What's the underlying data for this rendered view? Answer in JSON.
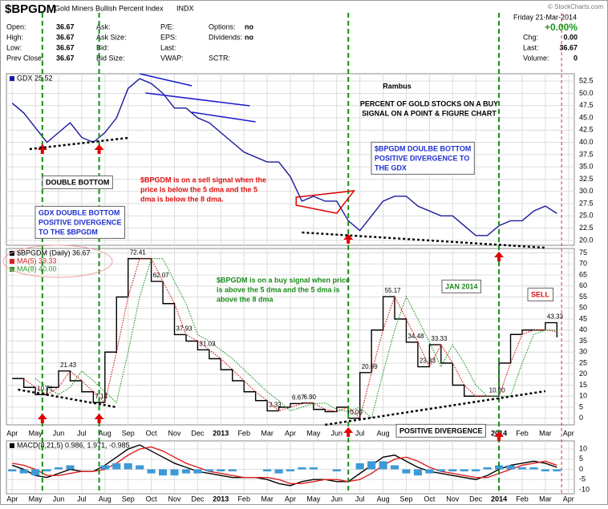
{
  "header": {
    "symbol": "$BPGDM",
    "name": "Gold Miners Bullish Percent Index",
    "exchange": "INDX",
    "date": "Friday  21-Mar-2014",
    "change": "+0.00%",
    "copyright": "© StockCharts.com",
    "quote": [
      [
        [
          "Open:",
          "36.67"
        ],
        [
          "Ask:"
        ],
        [
          "P/E:"
        ],
        [
          "Options:",
          "no"
        ]
      ],
      [
        [
          "High:",
          "36.67"
        ],
        [
          "Ask Size:"
        ],
        [
          "EPS:"
        ],
        [
          "Dividends:",
          "no"
        ]
      ],
      [
        [
          "Low:",
          "36.67"
        ],
        [
          "Bid:"
        ],
        [
          "Last:"
        ]
      ],
      [
        [
          "Prev Close:",
          "36.67"
        ],
        [
          "Bid Size:"
        ],
        [
          "VWAP:"
        ],
        [
          "SCTR:"
        ]
      ]
    ],
    "summary": [
      [
        "Chg:",
        "0.00"
      ],
      [
        "Last:",
        "36.67"
      ],
      [
        "Volume:",
        "0"
      ]
    ]
  },
  "chart_data": [
    {
      "type": "line",
      "grid": true,
      "ylim": [
        19,
        54
      ],
      "yticks": [
        {
          "value": 20,
          "label": "20.0"
        },
        22.5,
        {
          "value": 25,
          "label": "25.0"
        },
        27.5,
        {
          "value": 30,
          "label": "30.0"
        },
        32.5,
        {
          "value": 35,
          "label": "35.0"
        },
        37.5,
        {
          "value": 40,
          "label": "40.0"
        },
        42.5,
        {
          "value": 45,
          "label": "45.0"
        },
        47.5,
        {
          "value": 50,
          "label": "50.0"
        },
        52.5
      ],
      "series": [
        {
          "name": "GDX 25.52",
          "color": "#1a1a9c",
          "values": [
            48,
            46,
            43,
            40,
            42,
            44,
            41,
            40,
            42,
            45,
            51,
            53,
            52,
            50,
            47,
            47,
            45,
            44,
            42,
            40,
            38,
            37,
            36,
            36,
            33,
            28,
            29,
            28,
            28,
            24,
            22,
            25,
            28,
            29,
            29,
            27,
            26,
            25,
            25,
            23,
            21,
            21,
            23,
            24,
            24,
            26,
            27,
            25.5,
            null
          ]
        }
      ],
      "annotations": [
        {
          "text": [
            "Rambus"
          ],
          "color": "#000000"
        },
        {
          "text": [
            "PERCENT OF GOLD STOCKS ON A BUY",
            "SIGNAL ON A POINT & FIGURE CHART"
          ],
          "color": "#000000"
        },
        {
          "text": [
            "$BPGDM DOULBE BOTTOM",
            "POSITIVE DIVERGENCE TO",
            "THE GDX"
          ],
          "color": "#1f2fd0",
          "boxed": true
        },
        {
          "text": [
            "DOUBLE BOTTOM"
          ],
          "color": "#000000",
          "boxed": true
        },
        {
          "text": [
            "$BPGDM is on a sell signal when the",
            "price is below the 5 dma and the 5",
            "dma is below the 8 dma."
          ],
          "color": "#e01010"
        },
        {
          "text": [
            "GDX DOUBLE BOTTOM",
            "POSITIVE DIVERGENCE",
            "TO THE $BPGDM"
          ],
          "color": "#1f2fd0",
          "boxed": true
        }
      ]
    },
    {
      "type": "line",
      "grid": true,
      "ylim": [
        -3,
        77
      ],
      "yticks": [
        0,
        5,
        10,
        15,
        20,
        25,
        30,
        35,
        40,
        45,
        50,
        55,
        60,
        65,
        70,
        75
      ],
      "categories": [
        "Apr",
        null,
        "May",
        null,
        "Jun",
        null,
        "Jul",
        null,
        "Aug",
        null,
        "Sep",
        null,
        "Oct",
        null,
        "Nov",
        null,
        "Dec",
        null,
        "2013",
        null,
        "Feb",
        null,
        "Mar",
        null,
        "Apr",
        null,
        "May",
        null,
        "Jun",
        null,
        "Jul",
        null,
        "Aug",
        null,
        "Sep",
        null,
        "Oct",
        null,
        "Nov",
        null,
        "Dec",
        null,
        "2014",
        null,
        "Feb",
        null,
        "Mar",
        null,
        "Apr"
      ],
      "series": [
        {
          "name": "$BPGDM (Daily) 36.67",
          "color": "#000000",
          "line_style": "step",
          "values": [
            18,
            14,
            10.71,
            14,
            21.43,
            17,
            12,
            7.14,
            30,
            55,
            72.41,
            72.41,
            62.07,
            52,
            37.93,
            35,
            31.03,
            27,
            22,
            17,
            12,
            8,
            3.33,
            5,
            6.67,
            6.9,
            4,
            3,
            5,
            0,
            20.69,
            40,
            55.17,
            45,
            34.48,
            23.33,
            33.33,
            25,
            15,
            10,
            10,
            10,
            25,
            38,
            40,
            40,
            43.33,
            36.67,
            null
          ],
          "value_labels": [
            null,
            null,
            "10.71",
            null,
            "21.43",
            null,
            null,
            "7.14",
            null,
            null,
            "72.41",
            null,
            "62.07",
            null,
            "37.93",
            null,
            "31.03",
            null,
            null,
            null,
            null,
            null,
            "3.33",
            null,
            "6.67",
            "6.90",
            null,
            null,
            null,
            "0.00",
            "20.69",
            null,
            "55.17",
            null,
            "34.48",
            "23.33",
            "33.33",
            null,
            null,
            null,
            null,
            "10.00",
            null,
            null,
            null,
            null,
            "43.33",
            null,
            null
          ]
        },
        {
          "name": "MA(5) 39.33",
          "color": "#d42020",
          "line_style": "dotted",
          "values": [
            null,
            18,
            14,
            10.71,
            14,
            21.43,
            17,
            12,
            7.14,
            30,
            55,
            72.41,
            72.41,
            62.07,
            52,
            37.93,
            35,
            31.03,
            27,
            22,
            17,
            12,
            8,
            3.33,
            5,
            6.67,
            6.9,
            4,
            3,
            5,
            0,
            20.69,
            40,
            55.17,
            45,
            34.48,
            23.33,
            33.33,
            25,
            15,
            10,
            10,
            10,
            25,
            38,
            40,
            40,
            39.33,
            null
          ]
        },
        {
          "name": "MA(8) 40.00",
          "color": "#2a9a2a",
          "line_style": "dotted",
          "values": [
            null,
            null,
            18,
            14,
            10.71,
            14,
            21.43,
            17,
            12,
            7.14,
            30,
            55,
            72.41,
            72.41,
            62.07,
            52,
            37.93,
            35,
            31.03,
            27,
            22,
            17,
            12,
            8,
            3.33,
            5,
            6.67,
            6.9,
            4,
            3,
            5,
            0,
            20.69,
            40,
            55.17,
            45,
            34.48,
            23.33,
            33.33,
            25,
            15,
            10,
            10,
            10,
            25,
            38,
            40,
            40,
            null
          ]
        }
      ],
      "annotations": [
        {
          "text": [
            "$BPGDM is on a buy signal when price",
            "is above the 5 dma and the 5 dma is",
            "above the 8 dma"
          ],
          "color": "#1a8a1a"
        },
        {
          "text": [
            "JAN 2014"
          ],
          "color": "#1a8a1a",
          "boxed": true
        },
        {
          "text": [
            "SELL"
          ],
          "color": "#e01010",
          "boxed": true
        },
        {
          "text": [
            "POSITIVE DIVERGENCE"
          ],
          "color": "#000000",
          "boxed": true
        }
      ]
    },
    {
      "type": "line",
      "grid": true,
      "ylim": [
        -12,
        14
      ],
      "yticks": [
        -10,
        -5,
        0,
        5,
        10
      ],
      "series": [
        {
          "name": "MACD(8,21,5) 0.986, 1.971, -0.985",
          "color": "#000000",
          "values": [
            2,
            0,
            -3,
            -4,
            -2,
            0,
            -1,
            -1,
            2,
            6,
            10,
            12,
            9,
            6,
            3,
            1,
            -1,
            -2,
            -3,
            -4,
            -4,
            -4,
            -5,
            -7,
            -8,
            -6,
            -5,
            -5,
            -6,
            -6,
            -2,
            2,
            6,
            7,
            4,
            1,
            -1,
            -2,
            -3,
            -4,
            -5,
            -3,
            0,
            2,
            3,
            4,
            3,
            1,
            null
          ]
        },
        {
          "color": "#e02020",
          "values": [
            3,
            2,
            0,
            -3,
            -3,
            -2,
            -1,
            -1,
            0,
            3,
            7,
            10,
            11,
            9,
            6,
            3,
            1,
            -1,
            -2,
            -3,
            -4,
            -4,
            -4,
            -5,
            -7,
            -7,
            -6,
            -5,
            -5,
            -6,
            -5,
            -2,
            2,
            5,
            6,
            4,
            1,
            -1,
            -2,
            -3,
            -4,
            -4,
            -2,
            0,
            2,
            3,
            4,
            2,
            null
          ]
        },
        {
          "color": "#3d9ad6",
          "line_style": "bar",
          "values": [
            -1,
            -2,
            -3,
            -1,
            1,
            2,
            0,
            0,
            2,
            3,
            3,
            2,
            -2,
            -3,
            -3,
            -2,
            -2,
            -1,
            -1,
            -1,
            0,
            0,
            -1,
            -2,
            -1,
            1,
            1,
            0,
            -1,
            0,
            3,
            4,
            4,
            2,
            -2,
            -3,
            -2,
            -1,
            -1,
            -1,
            -1,
            1,
            2,
            2,
            1,
            1,
            -1,
            -1,
            null
          ]
        }
      ]
    }
  ]
}
